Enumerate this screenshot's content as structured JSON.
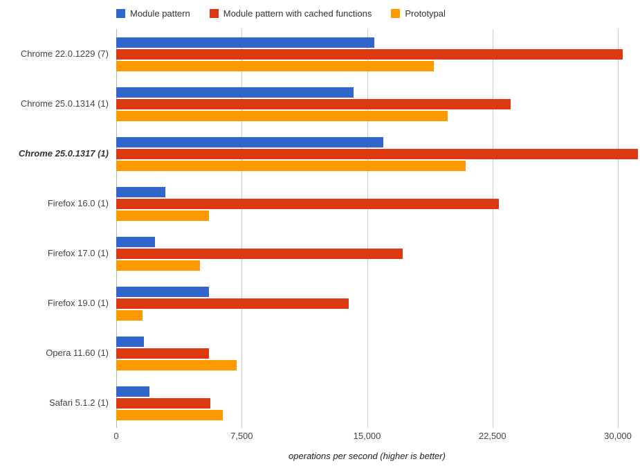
{
  "chart_data": {
    "type": "bar",
    "orientation": "horizontal",
    "title": "",
    "xlabel": "operations per second (higher is better)",
    "ylabel": "",
    "xlim": [
      0,
      30000
    ],
    "x_ticks": [
      "0",
      "7,500",
      "15,000",
      "22,500",
      "30,000"
    ],
    "grid": true,
    "legend_position": "top",
    "categories": [
      "Chrome 22.0.1229 (7)",
      "Chrome 25.0.1314 (1)",
      "Chrome 25.0.1317 (1)",
      "Firefox 16.0 (1)",
      "Firefox 17.0 (1)",
      "Firefox 19.0 (1)",
      "Opera 11.60 (1)",
      "Safari 5.1.2 (1)"
    ],
    "highlighted_category": "Chrome 25.0.1317 (1)",
    "series": [
      {
        "name": "Module pattern",
        "color": "#3366CC",
        "values": [
          14800,
          13600,
          15300,
          2800,
          2200,
          5300,
          1600,
          1900
        ]
      },
      {
        "name": "Module pattern with cached functions",
        "color": "#DC3912",
        "values": [
          29000,
          22600,
          29900,
          21900,
          16400,
          13300,
          5300,
          5400
        ]
      },
      {
        "name": "Prototypal",
        "color": "#FF9900",
        "values": [
          18200,
          19000,
          20000,
          5300,
          4800,
          1500,
          6900,
          6100
        ]
      }
    ]
  }
}
